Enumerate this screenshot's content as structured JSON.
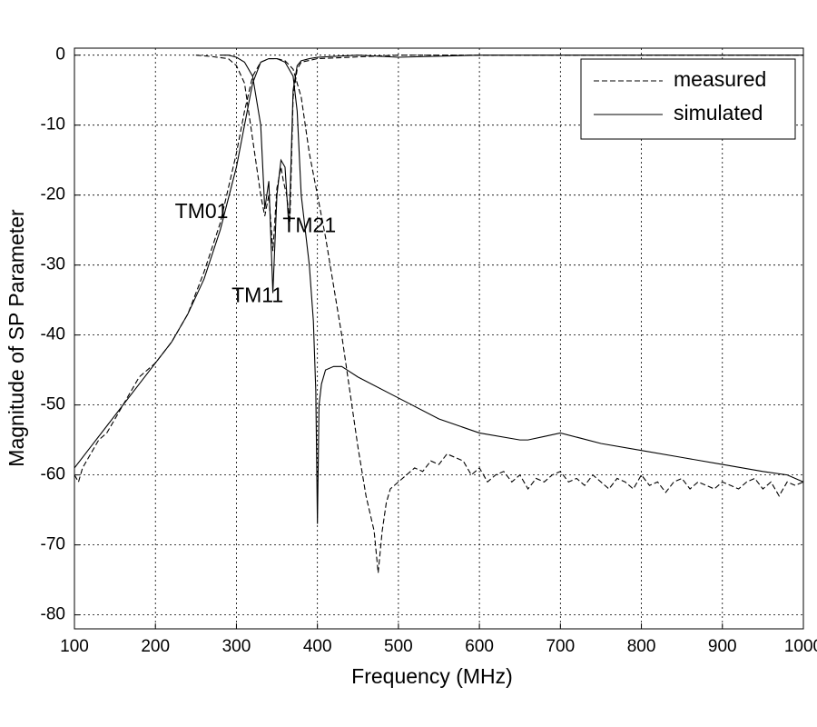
{
  "chart_data": {
    "type": "line",
    "xlabel": "Frequency (MHz)",
    "ylabel": "Magnitude of SP Parameter",
    "xlim": [
      100,
      1000
    ],
    "ylim": [
      -82,
      1
    ],
    "xticks": [
      100,
      200,
      300,
      400,
      500,
      600,
      700,
      800,
      900,
      1000
    ],
    "yticks": [
      0,
      -10,
      -20,
      -30,
      -40,
      -50,
      -60,
      -70,
      -80
    ],
    "grid": true,
    "legend": "upper right",
    "series": [
      {
        "name": "measured",
        "color": "#000000",
        "dash": "6,3",
        "curves": [
          {
            "x": [
              100,
              105,
              110,
              120,
              130,
              140,
              150,
              160,
              170,
              180,
              200,
              220,
              240,
              260,
              280,
              300,
              310,
              320,
              330,
              340,
              350,
              360,
              370,
              380,
              390,
              400,
              410,
              420,
              430,
              440,
              450,
              460,
              470,
              475,
              480,
              485,
              490,
              500,
              510,
              520,
              530,
              540,
              550,
              560,
              570,
              580,
              590,
              600,
              610,
              620,
              630,
              640,
              650,
              660,
              670,
              680,
              690,
              700,
              710,
              720,
              730,
              740,
              750,
              760,
              770,
              780,
              790,
              800,
              810,
              820,
              830,
              840,
              850,
              860,
              870,
              880,
              890,
              900,
              910,
              920,
              930,
              940,
              950,
              960,
              970,
              980,
              990,
              1000
            ],
            "values": [
              -60,
              -61,
              -59,
              -57,
              -55,
              -54,
              -52,
              -50,
              -48,
              -46,
              -44,
              -41,
              -37,
              -31,
              -24,
              -14,
              -8,
              -3,
              -1,
              -0.5,
              -0.5,
              -0.8,
              -2,
              -6,
              -14,
              -20,
              -26,
              -33,
              -40,
              -48,
              -56,
              -63,
              -68,
              -74,
              -68,
              -64,
              -62,
              -61,
              -60,
              -59,
              -59.5,
              -58,
              -58.5,
              -57,
              -57.5,
              -58,
              -60,
              -59,
              -61,
              -60,
              -59.5,
              -61,
              -60,
              -62,
              -60.5,
              -61,
              -60,
              -59.5,
              -61,
              -60.5,
              -61.5,
              -60,
              -61,
              -62,
              -60.5,
              -61,
              -62,
              -60,
              -61.5,
              -61,
              -62.5,
              -61,
              -60.5,
              -62,
              -61,
              -61.5,
              -62,
              -61,
              -61.5,
              -62,
              -61,
              -60.5,
              -62,
              -61,
              -63,
              -61,
              -61.5,
              -61
            ]
          },
          {
            "x": [
              250,
              270,
              290,
              300,
              310,
              320,
              330,
              335,
              340,
              345,
              350,
              355,
              358,
              362,
              366,
              370,
              375,
              380,
              400,
              500,
              600,
              700,
              800,
              900,
              1000
            ],
            "values": [
              0,
              -0.2,
              -0.5,
              -1.5,
              -4,
              -12,
              -20,
              -23,
              -20,
              -28,
              -19,
              -16,
              -18,
              -20,
              -24,
              -6,
              -2,
              -1,
              -0.5,
              0,
              0,
              0,
              0,
              0,
              0
            ]
          }
        ]
      },
      {
        "name": "simulated",
        "color": "#000000",
        "dash": "none",
        "curves": [
          {
            "x": [
              100,
              120,
              140,
              160,
              180,
              200,
              220,
              240,
              260,
              280,
              300,
              310,
              320,
              330,
              340,
              350,
              360,
              370,
              375,
              380,
              385,
              390,
              395,
              398,
              400,
              402,
              405,
              410,
              420,
              430,
              450,
              500,
              550,
              600,
              650,
              660,
              680,
              700,
              750,
              800,
              850,
              900,
              950,
              980,
              1000
            ],
            "values": [
              -59,
              -56,
              -53,
              -50,
              -47,
              -44,
              -41,
              -37,
              -32,
              -25,
              -16,
              -10,
              -4,
              -1,
              -0.5,
              -0.5,
              -1,
              -3,
              -8,
              -20,
              -25,
              -30,
              -38,
              -48,
              -67,
              -50,
              -47,
              -45,
              -44.5,
              -44.5,
              -46,
              -49,
              -52,
              -54,
              -55,
              -55,
              -54.5,
              -54,
              -55.5,
              -56.5,
              -57.5,
              -58.5,
              -59.5,
              -60,
              -61
            ]
          },
          {
            "x": [
              280,
              290,
              300,
              310,
              320,
              330,
              335,
              340,
              345,
              350,
              355,
              360,
              365,
              370,
              375,
              380,
              390,
              400,
              450,
              500,
              600,
              700,
              800,
              900,
              1000
            ],
            "values": [
              0,
              0,
              -0.3,
              -1,
              -3,
              -10,
              -22,
              -18,
              -34,
              -20,
              -15,
              -16,
              -25,
              -5,
              -1.5,
              -0.8,
              -0.5,
              -0.3,
              0,
              -0.3,
              0,
              0,
              0,
              0,
              0
            ]
          }
        ]
      }
    ],
    "annotations": [
      {
        "text": "TM01",
        "x": 257,
        "y": -22.5
      },
      {
        "text": "TM11",
        "x": 326,
        "y": -34.5
      },
      {
        "text": "TM21",
        "x": 390,
        "y": -24.5
      }
    ]
  }
}
